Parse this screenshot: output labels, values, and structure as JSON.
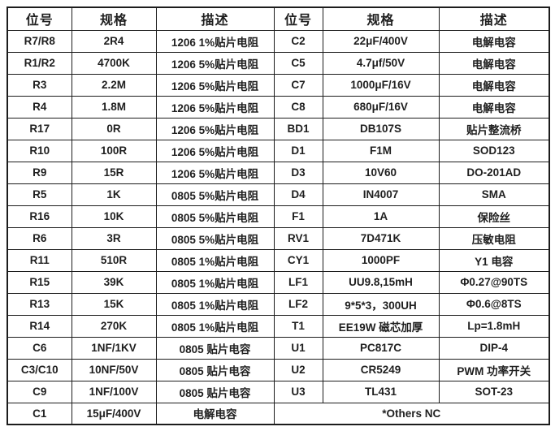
{
  "theme": {
    "background": "#ffffff",
    "text_color": "#1f1f1f",
    "border_color": "#1c1c1c"
  },
  "table": {
    "headers": [
      "位号",
      "规格",
      "描述",
      "位号",
      "规格",
      "描述"
    ],
    "left_rows": [
      {
        "pos": "R7/R8",
        "spec": "2R4",
        "desc": "1206 1%贴片电阻"
      },
      {
        "pos": "R1/R2",
        "spec": "4700K",
        "desc": "1206 5%贴片电阻"
      },
      {
        "pos": "R3",
        "spec": "2.2M",
        "desc": "1206 5%贴片电阻"
      },
      {
        "pos": "R4",
        "spec": "1.8M",
        "desc": "1206 5%贴片电阻"
      },
      {
        "pos": "R17",
        "spec": "0R",
        "desc": "1206 5%贴片电阻"
      },
      {
        "pos": "R10",
        "spec": "100R",
        "desc": "1206 5%贴片电阻"
      },
      {
        "pos": "R9",
        "spec": "15R",
        "desc": "1206 5%贴片电阻"
      },
      {
        "pos": "R5",
        "spec": "1K",
        "desc": "0805 5%贴片电阻"
      },
      {
        "pos": "R16",
        "spec": "10K",
        "desc": "0805 5%贴片电阻"
      },
      {
        "pos": "R6",
        "spec": "3R",
        "desc": "0805 5%贴片电阻"
      },
      {
        "pos": "R11",
        "spec": "510R",
        "desc": "0805 1%贴片电阻"
      },
      {
        "pos": "R15",
        "spec": "39K",
        "desc": "0805 1%贴片电阻"
      },
      {
        "pos": "R13",
        "spec": "15K",
        "desc": "0805 1%贴片电阻"
      },
      {
        "pos": "R14",
        "spec": "270K",
        "desc": "0805 1%贴片电阻"
      },
      {
        "pos": "C6",
        "spec": "1NF/1KV",
        "desc": "0805 贴片电容"
      },
      {
        "pos": "C3/C10",
        "spec": "10NF/50V",
        "desc": "0805 贴片电容"
      },
      {
        "pos": "C9",
        "spec": "1NF/100V",
        "desc": "0805 贴片电容"
      },
      {
        "pos": "C1",
        "spec": "15μF/400V",
        "desc": "电解电容"
      }
    ],
    "right_rows": [
      {
        "pos": "C2",
        "spec": "22μF/400V",
        "desc": "电解电容"
      },
      {
        "pos": "C5",
        "spec": "4.7μf/50V",
        "desc": "电解电容"
      },
      {
        "pos": "C7",
        "spec": "1000μF/16V",
        "desc": "电解电容"
      },
      {
        "pos": "C8",
        "spec": "680μF/16V",
        "desc": "电解电容"
      },
      {
        "pos": "BD1",
        "spec": "DB107S",
        "desc": "贴片整流桥"
      },
      {
        "pos": "D1",
        "spec": "F1M",
        "desc": "SOD123"
      },
      {
        "pos": "D3",
        "spec": "10V60",
        "desc": "DO-201AD"
      },
      {
        "pos": "D4",
        "spec": "IN4007",
        "desc": "SMA"
      },
      {
        "pos": "F1",
        "spec": "1A",
        "desc": "保险丝"
      },
      {
        "pos": "RV1",
        "spec": "7D471K",
        "desc": "压敏电阻"
      },
      {
        "pos": "CY1",
        "spec": "1000PF",
        "desc": "Y1 电容"
      },
      {
        "pos": "LF1",
        "spec": "UU9.8,15mH",
        "desc": "Φ0.27@90TS"
      },
      {
        "pos": "LF2",
        "spec": "9*5*3，300UH",
        "desc": "Φ0.6@8TS"
      },
      {
        "pos": "T1",
        "spec": "EE19W 磁芯加厚",
        "desc": "Lp=1.8mH"
      },
      {
        "pos": "U1",
        "spec": "PC817C",
        "desc": "DIP-4"
      },
      {
        "pos": "U2",
        "spec": "CR5249",
        "desc": "PWM 功率开关"
      },
      {
        "pos": "U3",
        "spec": "TL431",
        "desc": "SOT-23"
      }
    ],
    "footer_note": "*Others NC"
  }
}
